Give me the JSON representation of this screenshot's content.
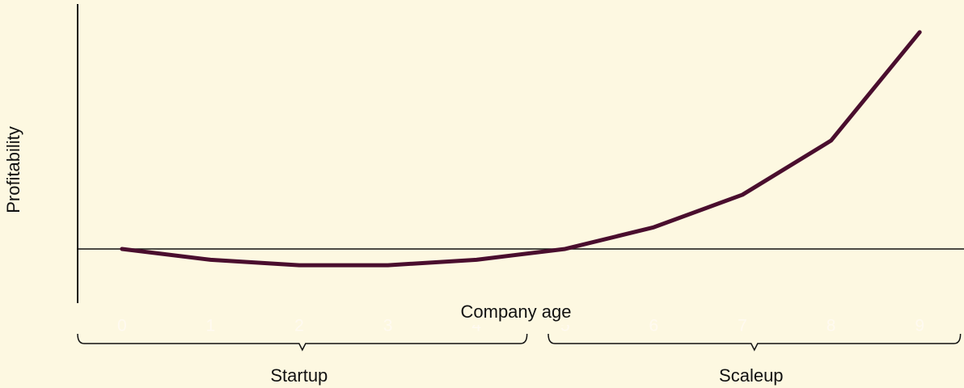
{
  "chart_data": {
    "type": "line",
    "x": [
      0,
      1,
      2,
      3,
      4,
      5,
      6,
      7,
      8,
      9
    ],
    "series": [
      {
        "color": "#4a0e2e",
        "values": [
          0,
          -0.5,
          -0.75,
          -0.75,
          -0.5,
          0,
          1,
          2.5,
          5,
          10
        ]
      }
    ],
    "xlim": [
      -0.5,
      9.5
    ],
    "xticks": [
      0,
      1,
      2,
      3,
      4,
      5,
      6,
      7,
      8,
      9
    ],
    "ylim": [
      -2.5,
      11.3
    ],
    "xlabel": "Company age",
    "ylabel": "Profitability",
    "groups": [
      {
        "label": "Startup",
        "range": [
          -0.5,
          4.57
        ]
      },
      {
        "label": "Scaleup",
        "range": [
          4.81,
          9.46
        ]
      }
    ]
  }
}
